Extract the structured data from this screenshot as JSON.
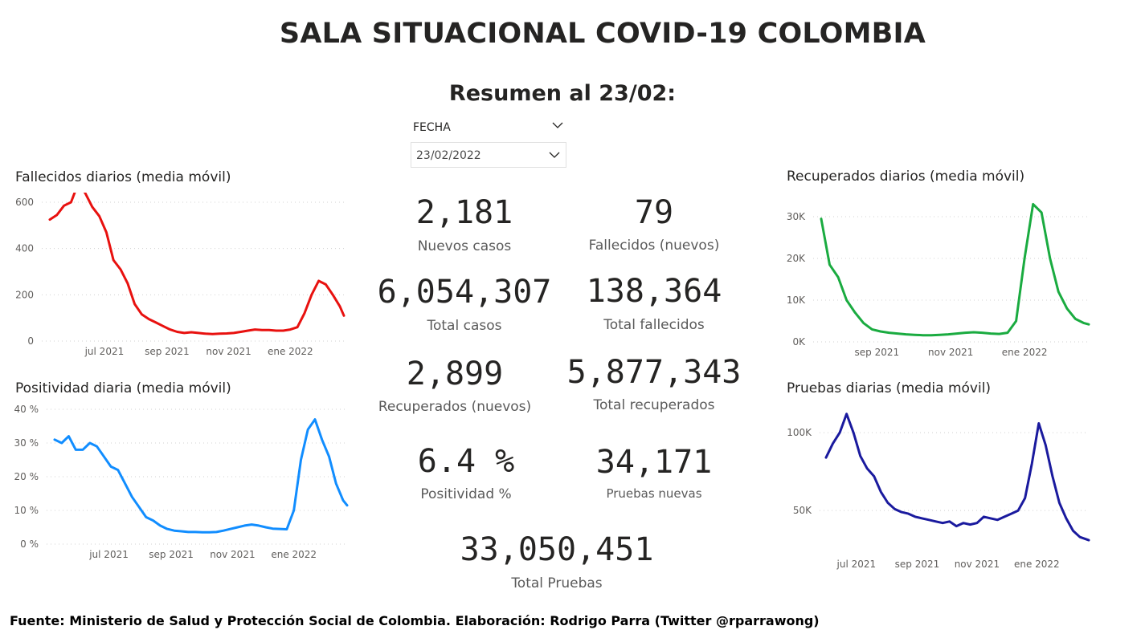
{
  "header": {
    "title": "SALA SITUACIONAL COVID-19 COLOMBIA",
    "subtitle": "Resumen al 23/02:"
  },
  "slicer": {
    "label": "FECHA",
    "value": "23/02/2022"
  },
  "kpis": {
    "nuevos_casos": {
      "value": "2,181",
      "label": "Nuevos casos"
    },
    "fallecidos_nuevos": {
      "value": "79",
      "label": "Fallecidos (nuevos)"
    },
    "total_casos": {
      "value": "6,054,307",
      "label": "Total casos"
    },
    "total_fallecidos": {
      "value": "138,364",
      "label": "Total fallecidos"
    },
    "recuperados_nuevos": {
      "value": "2,899",
      "label": "Recuperados (nuevos)"
    },
    "total_recuperados": {
      "value": "5,877,343",
      "label": "Total recuperados"
    },
    "positividad": {
      "value": "6.4 %",
      "label": "Positividad %"
    },
    "pruebas_nuevas": {
      "value": "34,171",
      "label": "Pruebas nuevas"
    },
    "total_pruebas": {
      "value": "33,050,451",
      "label": "Total Pruebas"
    }
  },
  "footer": "Fuente: Ministerio de Salud y Protección Social de Colombia. Elaboración: Rodrigo Parra (Twitter @rparrawong)",
  "chart_data": [
    {
      "id": "fallecidos",
      "type": "line",
      "title": "Fallecidos diarios (media móvil)",
      "color": "#e8110f",
      "x_ticks": [
        "jul 2021",
        "sep 2021",
        "nov 2021",
        "ene 2022"
      ],
      "y_ticks": [
        "0",
        "200",
        "400",
        "600"
      ],
      "ylim": [
        0,
        600
      ],
      "xlim": [
        "2021-05-08",
        "2022-02-23"
      ],
      "grid": true,
      "series": [
        {
          "x": [
            "2021-05-08",
            "2021-05-15",
            "2021-05-22",
            "2021-05-29",
            "2021-06-05",
            "2021-06-12",
            "2021-06-19",
            "2021-06-26",
            "2021-07-03",
            "2021-07-10",
            "2021-07-17",
            "2021-07-24",
            "2021-07-31",
            "2021-08-07",
            "2021-08-14",
            "2021-08-21",
            "2021-08-28",
            "2021-09-04",
            "2021-09-11",
            "2021-09-18",
            "2021-09-25",
            "2021-10-02",
            "2021-10-09",
            "2021-10-16",
            "2021-10-23",
            "2021-10-30",
            "2021-11-06",
            "2021-11-13",
            "2021-11-20",
            "2021-11-27",
            "2021-12-04",
            "2021-12-11",
            "2021-12-18",
            "2021-12-25",
            "2022-01-01",
            "2022-01-08",
            "2022-01-15",
            "2022-01-22",
            "2022-01-29",
            "2022-02-05",
            "2022-02-12",
            "2022-02-19",
            "2022-02-23"
          ],
          "y": [
            525,
            545,
            585,
            600,
            680,
            640,
            580,
            540,
            470,
            350,
            310,
            250,
            160,
            115,
            95,
            80,
            65,
            50,
            40,
            35,
            38,
            35,
            32,
            30,
            32,
            33,
            35,
            40,
            45,
            50,
            48,
            48,
            45,
            45,
            50,
            60,
            120,
            200,
            260,
            245,
            200,
            150,
            110
          ]
        }
      ]
    },
    {
      "id": "positividad",
      "type": "line",
      "title": "Positividad diaria (media móvil)",
      "color": "#118dff",
      "x_ticks": [
        "jul 2021",
        "sep 2021",
        "nov 2021",
        "ene 2022"
      ],
      "y_ticks": [
        "0 %",
        "10 %",
        "20 %",
        "30 %",
        "40 %"
      ],
      "ylim": [
        0,
        40
      ],
      "xlim": [
        "2021-05-08",
        "2022-02-23"
      ],
      "grid": true,
      "series": [
        {
          "x": [
            "2021-05-08",
            "2021-05-15",
            "2021-05-22",
            "2021-05-29",
            "2021-06-05",
            "2021-06-12",
            "2021-06-19",
            "2021-06-26",
            "2021-07-03",
            "2021-07-10",
            "2021-07-17",
            "2021-07-24",
            "2021-07-31",
            "2021-08-07",
            "2021-08-14",
            "2021-08-21",
            "2021-08-28",
            "2021-09-04",
            "2021-09-11",
            "2021-09-18",
            "2021-09-25",
            "2021-10-02",
            "2021-10-09",
            "2021-10-16",
            "2021-10-23",
            "2021-10-30",
            "2021-11-06",
            "2021-11-13",
            "2021-11-20",
            "2021-11-27",
            "2021-12-04",
            "2021-12-11",
            "2021-12-18",
            "2021-12-25",
            "2022-01-01",
            "2022-01-08",
            "2022-01-15",
            "2022-01-22",
            "2022-01-29",
            "2022-02-05",
            "2022-02-12",
            "2022-02-19",
            "2022-02-23"
          ],
          "y": [
            31,
            30,
            32,
            28,
            28,
            30,
            29,
            26,
            23,
            22,
            18,
            14,
            11,
            8,
            7,
            5.5,
            4.5,
            4,
            3.8,
            3.6,
            3.6,
            3.5,
            3.5,
            3.6,
            4,
            4.5,
            5,
            5.5,
            5.8,
            5.5,
            5,
            4.6,
            4.5,
            4.4,
            10,
            25,
            34,
            37,
            31,
            26,
            18,
            13,
            11.5
          ]
        }
      ]
    },
    {
      "id": "recuperados",
      "type": "line",
      "title": "Recuperados diarios (media móvil)",
      "color": "#1aab40",
      "x_ticks": [
        "sep 2021",
        "nov 2021",
        "ene 2022"
      ],
      "y_ticks": [
        "0K",
        "10K",
        "20K",
        "30K"
      ],
      "ylim": [
        0,
        30000
      ],
      "xlim": [
        "2021-07-17",
        "2022-02-23"
      ],
      "grid": true,
      "series": [
        {
          "x": [
            "2021-07-17",
            "2021-07-24",
            "2021-07-31",
            "2021-08-07",
            "2021-08-14",
            "2021-08-21",
            "2021-08-28",
            "2021-09-04",
            "2021-09-11",
            "2021-09-18",
            "2021-09-25",
            "2021-10-02",
            "2021-10-09",
            "2021-10-16",
            "2021-10-23",
            "2021-10-30",
            "2021-11-06",
            "2021-11-13",
            "2021-11-20",
            "2021-11-27",
            "2021-12-04",
            "2021-12-11",
            "2021-12-18",
            "2021-12-25",
            "2022-01-01",
            "2022-01-08",
            "2022-01-15",
            "2022-01-22",
            "2022-01-29",
            "2022-02-05",
            "2022-02-12",
            "2022-02-19",
            "2022-02-23"
          ],
          "y": [
            29500,
            18500,
            15500,
            10000,
            7000,
            4500,
            3000,
            2500,
            2200,
            2000,
            1800,
            1700,
            1600,
            1600,
            1700,
            1800,
            2000,
            2200,
            2300,
            2200,
            2000,
            1900,
            2200,
            5000,
            20000,
            33000,
            31000,
            20000,
            12000,
            8000,
            5500,
            4500,
            4200
          ]
        }
      ]
    },
    {
      "id": "pruebas",
      "type": "line",
      "title": "Pruebas diarias (media móvil)",
      "color": "#1a1a9e",
      "x_ticks": [
        "jul 2021",
        "sep 2021",
        "nov 2021",
        "ene 2022"
      ],
      "y_ticks": [
        "50K",
        "100K"
      ],
      "ylim": [
        30000,
        115000
      ],
      "xlim": [
        "2021-05-31",
        "2022-02-23"
      ],
      "grid": true,
      "series": [
        {
          "x": [
            "2021-05-31",
            "2021-06-07",
            "2021-06-14",
            "2021-06-21",
            "2021-06-28",
            "2021-07-05",
            "2021-07-12",
            "2021-07-19",
            "2021-07-26",
            "2021-08-02",
            "2021-08-09",
            "2021-08-16",
            "2021-08-23",
            "2021-08-30",
            "2021-09-06",
            "2021-09-13",
            "2021-09-20",
            "2021-09-27",
            "2021-10-04",
            "2021-10-11",
            "2021-10-18",
            "2021-10-25",
            "2021-11-01",
            "2021-11-08",
            "2021-11-15",
            "2021-11-22",
            "2021-11-29",
            "2021-12-06",
            "2021-12-13",
            "2021-12-20",
            "2021-12-27",
            "2022-01-03",
            "2022-01-10",
            "2022-01-17",
            "2022-01-24",
            "2022-01-31",
            "2022-02-07",
            "2022-02-14",
            "2022-02-23"
          ],
          "y": [
            84000,
            93000,
            100000,
            112000,
            100000,
            85000,
            77000,
            72000,
            62000,
            55000,
            51000,
            49000,
            48000,
            46000,
            45000,
            44000,
            43000,
            42000,
            43000,
            40000,
            42000,
            41000,
            42000,
            46000,
            45000,
            44000,
            46000,
            48000,
            50000,
            58000,
            80000,
            106000,
            92000,
            72000,
            55000,
            45000,
            37000,
            33000,
            31000
          ]
        }
      ]
    }
  ]
}
